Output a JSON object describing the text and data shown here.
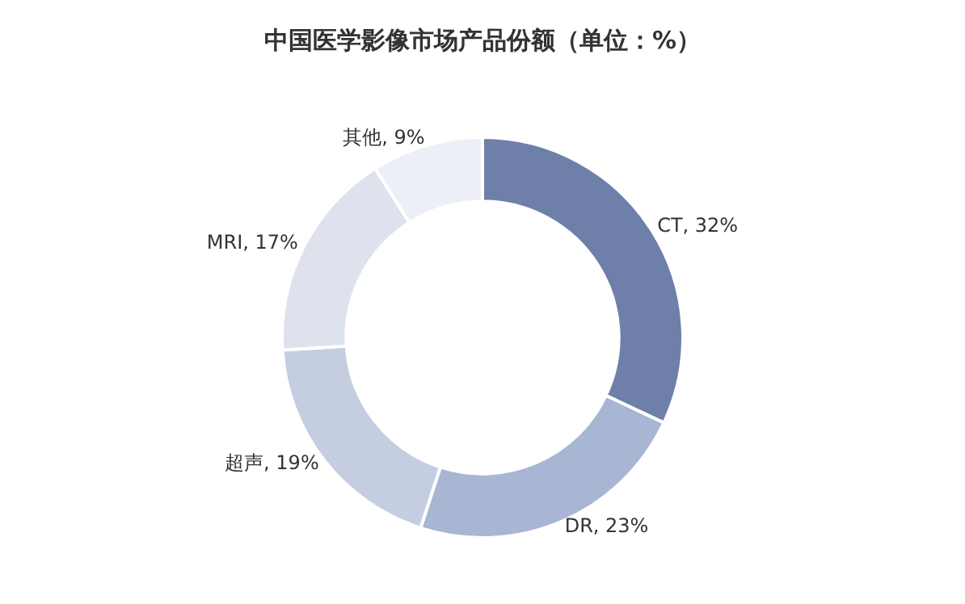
{
  "chart_data": {
    "type": "donut",
    "title": "中国医学影像市场产品份额（单位：%）",
    "categories": [
      "CT",
      "DR",
      "超声",
      "MRI",
      "其他"
    ],
    "values": [
      32,
      23,
      19,
      17,
      9
    ],
    "value_labels": [
      "32%",
      "23%",
      "19%",
      "17%",
      "9%"
    ],
    "colors": [
      "#6e80a9",
      "#a8b5d3",
      "#c5cde1",
      "#dde2ed",
      "#eceff5"
    ],
    "legend": false
  }
}
